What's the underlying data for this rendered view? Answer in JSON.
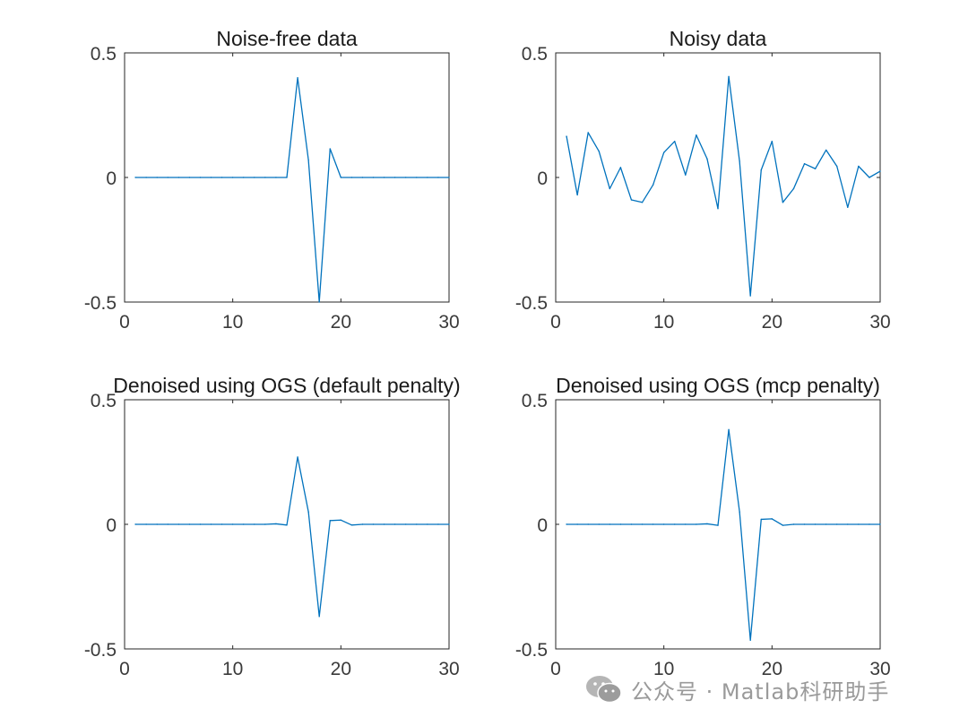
{
  "chart_data": [
    {
      "type": "line",
      "title": "Noise-free data",
      "x": [
        1,
        2,
        3,
        4,
        5,
        6,
        7,
        8,
        9,
        10,
        11,
        12,
        13,
        14,
        15,
        16,
        17,
        18,
        19,
        20,
        21,
        22,
        23,
        24,
        25,
        26,
        27,
        28,
        29,
        30
      ],
      "values": [
        0,
        0,
        0,
        0,
        0,
        0,
        0,
        0,
        0,
        0,
        0,
        0,
        0,
        0,
        0,
        0.4,
        0.07,
        -0.5,
        0.115,
        0,
        0,
        0,
        0,
        0,
        0,
        0,
        0,
        0,
        0,
        0
      ],
      "xlim": [
        0,
        30
      ],
      "ylim": [
        -0.5,
        0.5
      ],
      "xticks": [
        "0",
        "10",
        "20",
        "30"
      ],
      "yticks": [
        "0.5",
        "0",
        "-0.5"
      ],
      "xlabel": "",
      "ylabel": "",
      "color": "#0072BD"
    },
    {
      "type": "line",
      "title": "Noisy data",
      "x": [
        1,
        2,
        3,
        4,
        5,
        6,
        7,
        8,
        9,
        10,
        11,
        12,
        13,
        14,
        15,
        16,
        17,
        18,
        19,
        20,
        21,
        22,
        23,
        24,
        25,
        26,
        27,
        28,
        29,
        30
      ],
      "values": [
        0.165,
        -0.07,
        0.18,
        0.105,
        -0.045,
        0.04,
        -0.09,
        -0.1,
        -0.03,
        0.1,
        0.145,
        0.01,
        0.17,
        0.075,
        -0.125,
        0.405,
        0.065,
        -0.475,
        0.03,
        0.145,
        -0.1,
        -0.045,
        0.055,
        0.035,
        0.11,
        0.045,
        -0.12,
        0.045,
        0.0,
        0.025
      ],
      "xlim": [
        0,
        30
      ],
      "ylim": [
        -0.5,
        0.5
      ],
      "xticks": [
        "0",
        "10",
        "20",
        "30"
      ],
      "yticks": [
        "0.5",
        "0",
        "-0.5"
      ],
      "xlabel": "",
      "ylabel": "",
      "color": "#0072BD"
    },
    {
      "type": "line",
      "title": "Denoised using OGS (default penalty)",
      "x": [
        1,
        2,
        3,
        4,
        5,
        6,
        7,
        8,
        9,
        10,
        11,
        12,
        13,
        14,
        15,
        16,
        17,
        18,
        19,
        20,
        21,
        22,
        23,
        24,
        25,
        26,
        27,
        28,
        29,
        30
      ],
      "values": [
        0,
        0,
        0,
        0,
        0,
        0,
        0,
        0,
        0,
        0,
        0,
        0,
        0,
        0.002,
        -0.003,
        0.27,
        0.05,
        -0.37,
        0.015,
        0.017,
        -0.003,
        0,
        0,
        0,
        0,
        0,
        0,
        0,
        0,
        0
      ],
      "xlim": [
        0,
        30
      ],
      "ylim": [
        -0.5,
        0.5
      ],
      "xticks": [
        "0",
        "10",
        "20",
        "30"
      ],
      "yticks": [
        "0.5",
        "0",
        "-0.5"
      ],
      "xlabel": "",
      "ylabel": "",
      "color": "#0072BD"
    },
    {
      "type": "line",
      "title": "Denoised using OGS (mcp penalty)",
      "x": [
        1,
        2,
        3,
        4,
        5,
        6,
        7,
        8,
        9,
        10,
        11,
        12,
        13,
        14,
        15,
        16,
        17,
        18,
        19,
        20,
        21,
        22,
        23,
        24,
        25,
        26,
        27,
        28,
        29,
        30
      ],
      "values": [
        0,
        0,
        0,
        0,
        0,
        0,
        0,
        0,
        0,
        0,
        0,
        0,
        0,
        0.002,
        -0.004,
        0.38,
        0.05,
        -0.465,
        0.02,
        0.022,
        -0.004,
        0,
        0,
        0,
        0,
        0,
        0,
        0,
        0,
        0
      ],
      "xlim": [
        0,
        30
      ],
      "ylim": [
        -0.5,
        0.5
      ],
      "xticks": [
        "0",
        "10",
        "20",
        "30"
      ],
      "yticks": [
        "0.5",
        "0",
        "-0.5"
      ],
      "xlabel": "",
      "ylabel": "",
      "color": "#0072BD"
    }
  ],
  "watermark": {
    "text": "公众号 · Matlab科研助手",
    "icon": "wechat-icon"
  }
}
